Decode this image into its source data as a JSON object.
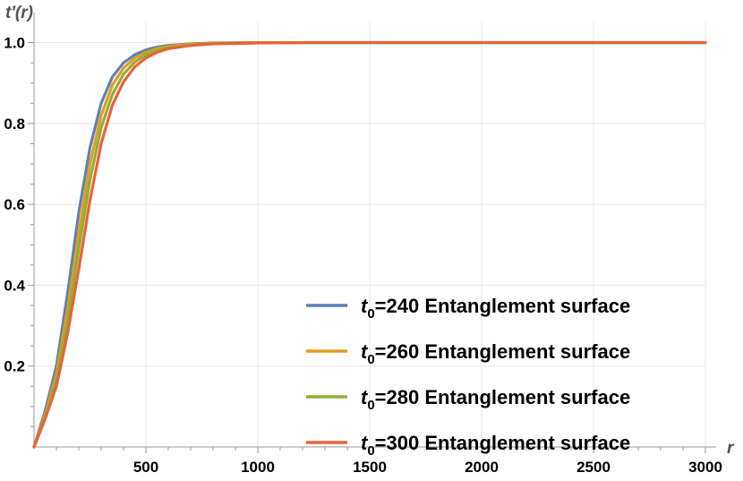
{
  "chart_data": {
    "type": "line",
    "title": "",
    "xlabel": "r",
    "ylabel": "t′(r)",
    "xlim": [
      0,
      3000
    ],
    "ylim": [
      0,
      1.05
    ],
    "x_ticks": [
      500,
      1000,
      1500,
      2000,
      2500,
      3000
    ],
    "y_ticks": [
      0.2,
      0.4,
      0.6,
      0.8,
      1.0
    ],
    "y_tick_labels": [
      "0.2",
      "0.4",
      "0.6",
      "0.8",
      "1.0"
    ],
    "grid": true,
    "legend_position": "bottom-right",
    "series": [
      {
        "name": "t0=240 Entanglement surface",
        "legend_symbol": "t",
        "legend_subscript": "0",
        "legend_rest": "=240 Entanglement surface",
        "color": "#5E81B5",
        "x": [
          0,
          50,
          100,
          150,
          200,
          250,
          300,
          350,
          400,
          450,
          500,
          550,
          600,
          700,
          800,
          900,
          1000,
          1200,
          1500,
          2000,
          2500,
          3000
        ],
        "y": [
          0,
          0.09,
          0.2,
          0.38,
          0.58,
          0.74,
          0.85,
          0.915,
          0.95,
          0.97,
          0.982,
          0.989,
          0.993,
          0.997,
          0.999,
          0.9995,
          1.0,
          1.0,
          1.0,
          1.0,
          1.0,
          1.0
        ]
      },
      {
        "name": "t0=260 Entanglement surface",
        "legend_symbol": "t",
        "legend_subscript": "0",
        "legend_rest": "=260 Entanglement surface",
        "color": "#E19C24",
        "x": [
          0,
          50,
          100,
          150,
          200,
          250,
          300,
          350,
          400,
          450,
          500,
          550,
          600,
          700,
          800,
          900,
          1000,
          1200,
          1500,
          2000,
          2500,
          3000
        ],
        "y": [
          0,
          0.08,
          0.18,
          0.34,
          0.53,
          0.7,
          0.82,
          0.895,
          0.937,
          0.962,
          0.976,
          0.985,
          0.991,
          0.996,
          0.998,
          0.999,
          1.0,
          1.0,
          1.0,
          1.0,
          1.0,
          1.0
        ]
      },
      {
        "name": "t0=280 Entanglement surface",
        "legend_symbol": "t",
        "legend_subscript": "0",
        "legend_rest": "=280 Entanglement surface",
        "color": "#8FB032",
        "x": [
          0,
          50,
          100,
          150,
          200,
          250,
          300,
          350,
          400,
          450,
          500,
          550,
          600,
          700,
          800,
          900,
          1000,
          1200,
          1500,
          2000,
          2500,
          3000
        ],
        "y": [
          0,
          0.075,
          0.165,
          0.31,
          0.49,
          0.66,
          0.79,
          0.872,
          0.922,
          0.952,
          0.97,
          0.981,
          0.988,
          0.994,
          0.997,
          0.999,
          0.9995,
          1.0,
          1.0,
          1.0,
          1.0,
          1.0
        ]
      },
      {
        "name": "t0=300 Entanglement surface",
        "legend_symbol": "t",
        "legend_subscript": "0",
        "legend_rest": "=300 Entanglement surface",
        "color": "#EB6235",
        "x": [
          0,
          50,
          100,
          150,
          200,
          250,
          300,
          350,
          400,
          450,
          500,
          550,
          600,
          700,
          800,
          900,
          1000,
          1200,
          1500,
          2000,
          2500,
          3000
        ],
        "y": [
          0,
          0.07,
          0.15,
          0.28,
          0.44,
          0.61,
          0.75,
          0.845,
          0.903,
          0.94,
          0.962,
          0.976,
          0.985,
          0.993,
          0.997,
          0.998,
          0.999,
          1.0,
          1.0,
          1.0,
          1.0,
          1.0
        ]
      }
    ]
  }
}
